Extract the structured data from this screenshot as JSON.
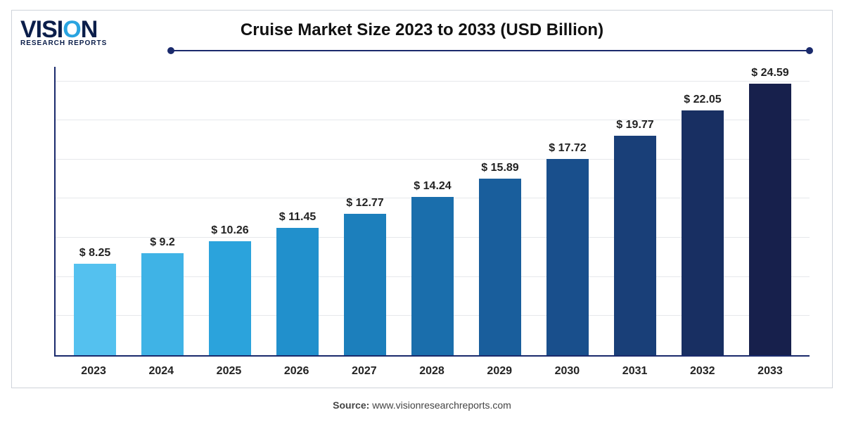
{
  "logo": {
    "main_prefix": "VISI",
    "main_accent": "O",
    "main_suffix": "N",
    "sub": "RESEARCH REPORTS",
    "text_color": "#0b1e4a",
    "accent_color": "#2aa4e0"
  },
  "title": {
    "text": "Cruise Market Size 2023 to 2033 (USD Billion)",
    "fontsize": 24,
    "color": "#111111"
  },
  "divider": {
    "color": "#1a2a6c"
  },
  "chart": {
    "type": "bar",
    "y_max": 26,
    "gridline_count": 7,
    "grid_color": "#e6e8eb",
    "axis_color": "#1a2a6c",
    "bar_width_pct": 62,
    "value_prefix": "$ ",
    "value_fontsize": 16,
    "xlabel_fontsize": 16,
    "items": [
      {
        "year": "2023",
        "value": 8.25,
        "label": "8.25",
        "color": "#54c1ef"
      },
      {
        "year": "2024",
        "value": 9.2,
        "label": "9.2",
        "color": "#3fb3e6"
      },
      {
        "year": "2025",
        "value": 10.26,
        "label": "10.26",
        "color": "#2ba3dc"
      },
      {
        "year": "2026",
        "value": 11.45,
        "label": "11.45",
        "color": "#2190cc"
      },
      {
        "year": "2027",
        "value": 12.77,
        "label": "12.77",
        "color": "#1c7fbc"
      },
      {
        "year": "2028",
        "value": 14.24,
        "label": "14.24",
        "color": "#1a6eac"
      },
      {
        "year": "2029",
        "value": 15.89,
        "label": "15.89",
        "color": "#195e9c"
      },
      {
        "year": "2030",
        "value": 17.72,
        "label": "17.72",
        "color": "#194f8c"
      },
      {
        "year": "2031",
        "value": 19.77,
        "label": "19.77",
        "color": "#193f78"
      },
      {
        "year": "2032",
        "value": 22.05,
        "label": "22.05",
        "color": "#182f62"
      },
      {
        "year": "2033",
        "value": 24.59,
        "label": "24.59",
        "color": "#17204c"
      }
    ]
  },
  "source": {
    "label": "Source:",
    "value": "www.visionresearchreports.com",
    "color": "#444444"
  },
  "frame": {
    "border_color": "#cfd3da"
  }
}
